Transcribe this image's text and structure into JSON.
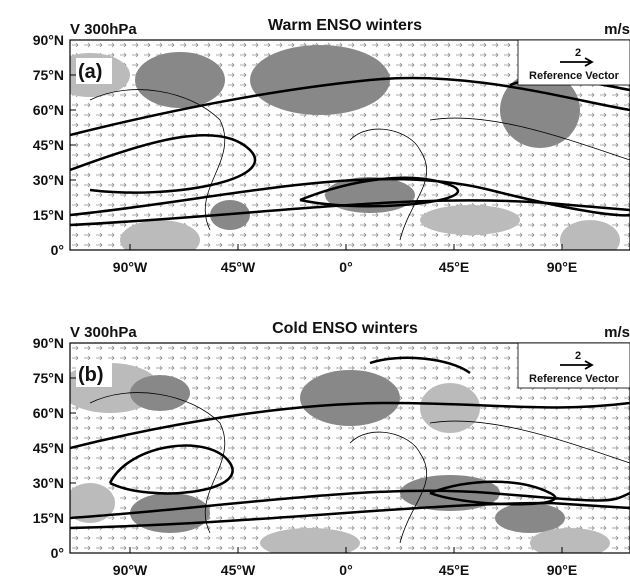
{
  "panels": [
    {
      "title": "Warm ENSO winters",
      "variable": "V 300hPa",
      "unit": "m/s",
      "tag": "(a)",
      "reference": {
        "magnitude": "2",
        "label": "Reference Vector"
      },
      "lat_ticks": [
        "90°N",
        "75°N",
        "60°N",
        "45°N",
        "30°N",
        "15°N",
        "0°"
      ],
      "lon_ticks": [
        "90°W",
        "45°W",
        "0°",
        "45°E",
        "90°E"
      ]
    },
    {
      "title": "Cold ENSO winters",
      "variable": "V 300hPa",
      "unit": "m/s",
      "tag": "(b)",
      "reference": {
        "magnitude": "2",
        "label": "Reference Vector"
      },
      "lat_ticks": [
        "90°N",
        "75°N",
        "60°N",
        "45°N",
        "30°N",
        "15°N",
        "0°"
      ],
      "lon_ticks": [
        "90°W",
        "45°W",
        "0°",
        "45°E",
        "90°E"
      ]
    }
  ]
}
